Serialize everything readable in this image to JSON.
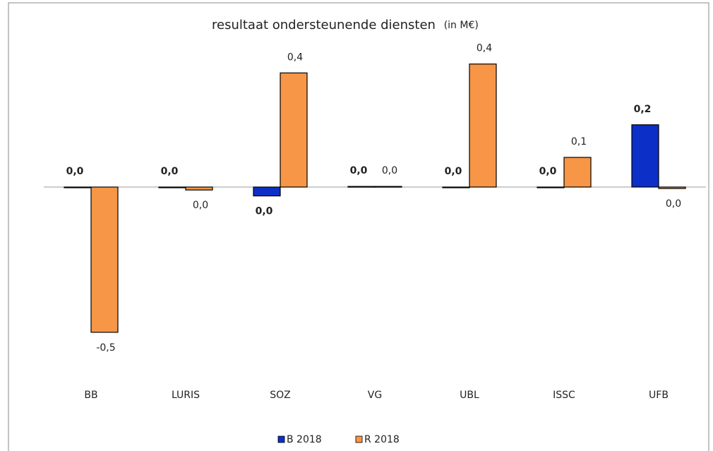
{
  "chart_data": {
    "type": "bar",
    "title": "resultaat ondersteunende diensten",
    "subtitle": "(in M€)",
    "categories": [
      "BB",
      "LURIS",
      "SOZ",
      "VG",
      "UBL",
      "ISSC",
      "UFB"
    ],
    "series": [
      {
        "name": "B 2018",
        "color": "#0b2fc7",
        "label_color": "#1f4fc6",
        "values": [
          0,
          0,
          -0.03,
          0.002,
          0,
          0,
          0.21
        ],
        "value_labels": [
          "0,0",
          "0,0",
          "0,0",
          "0,0",
          "0,0",
          "0,0",
          "0,2"
        ]
      },
      {
        "name": "R 2018",
        "color": "#f79646",
        "label_color": "#222222",
        "values": [
          -0.49,
          -0.01,
          0.385,
          0.002,
          0.415,
          0.1,
          -0.005
        ],
        "value_labels": [
          "-0,5",
          "0,0",
          "0,4",
          "0,0",
          "0,4",
          "0,1",
          "0,0"
        ]
      }
    ],
    "ylim": [
      -0.6,
      0.5
    ],
    "legend": "bottom"
  }
}
